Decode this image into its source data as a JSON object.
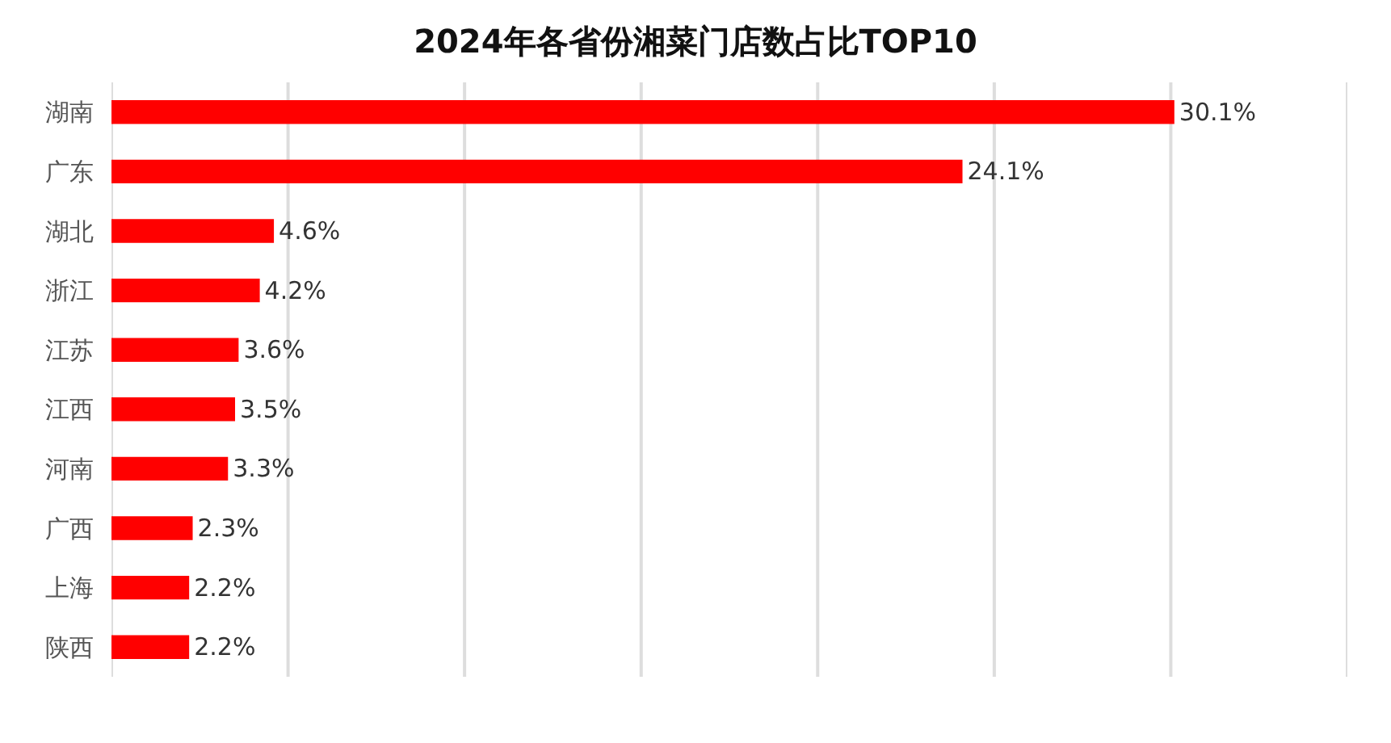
{
  "chart_data": {
    "type": "bar",
    "orientation": "horizontal",
    "title": "2024年各省份湘菜门店数占比TOP10",
    "categories": [
      "湖南",
      "广东",
      "湖北",
      "浙江",
      "江苏",
      "江西",
      "河南",
      "广西",
      "上海",
      "陕西"
    ],
    "values": [
      30.1,
      24.1,
      4.6,
      4.2,
      3.6,
      3.5,
      3.3,
      2.3,
      2.2,
      2.2
    ],
    "value_labels": [
      "30.1%",
      "24.1%",
      "4.6%",
      "4.2%",
      "3.6%",
      "3.5%",
      "3.3%",
      "2.3%",
      "2.2%",
      "2.2%"
    ],
    "color": "#ff0000",
    "xlim": [
      0,
      35
    ],
    "xticks": [
      {
        "value": 0,
        "label": null
      },
      {
        "value": 5,
        "label": null
      },
      {
        "value": 10,
        "label": null
      },
      {
        "value": 15,
        "label": null
      },
      {
        "value": 20,
        "label": null
      },
      {
        "value": 25,
        "label": null
      },
      {
        "value": 30,
        "label": null
      },
      {
        "value": 35,
        "label": null
      }
    ],
    "tick_labels": "y",
    "grid": "x"
  }
}
